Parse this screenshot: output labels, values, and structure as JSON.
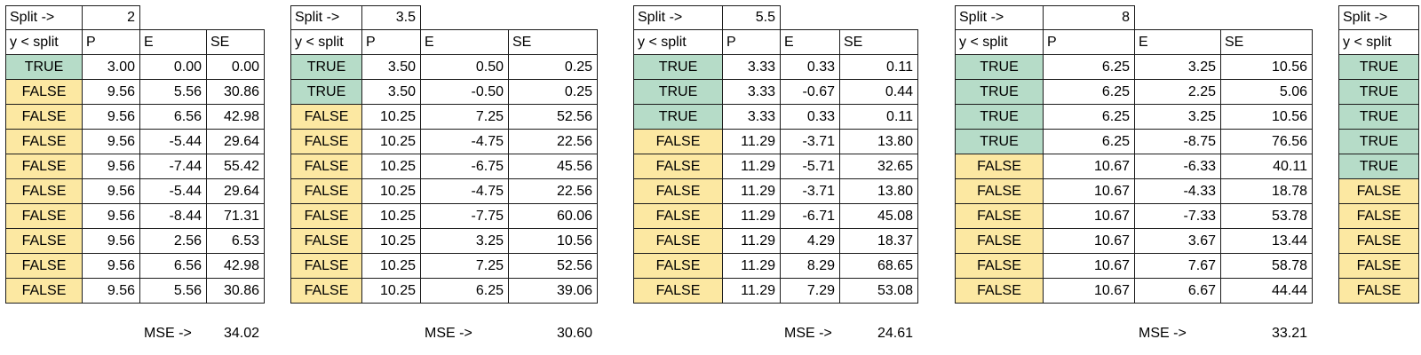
{
  "colors": {
    "true_fill": "#b6dcc8",
    "false_fill": "#fce8a2",
    "border": "#1c1c1c",
    "text": "#000000",
    "background": "#ffffff"
  },
  "chart_data": [
    {
      "type": "table",
      "split_label": "Split ->",
      "split_value": "2",
      "headers": [
        "y < split",
        "P",
        "E",
        "SE"
      ],
      "rows": [
        [
          "TRUE",
          "3.00",
          "0.00",
          "0.00"
        ],
        [
          "FALSE",
          "9.56",
          "5.56",
          "30.86"
        ],
        [
          "FALSE",
          "9.56",
          "6.56",
          "42.98"
        ],
        [
          "FALSE",
          "9.56",
          "-5.44",
          "29.64"
        ],
        [
          "FALSE",
          "9.56",
          "-7.44",
          "55.42"
        ],
        [
          "FALSE",
          "9.56",
          "-5.44",
          "29.64"
        ],
        [
          "FALSE",
          "9.56",
          "-8.44",
          "71.31"
        ],
        [
          "FALSE",
          "9.56",
          "2.56",
          "6.53"
        ],
        [
          "FALSE",
          "9.56",
          "6.56",
          "42.98"
        ],
        [
          "FALSE",
          "9.56",
          "5.56",
          "30.86"
        ]
      ],
      "mse_label": "MSE ->",
      "mse_value": "34.02"
    },
    {
      "type": "table",
      "split_label": "Split ->",
      "split_value": "3.5",
      "headers": [
        "y < split",
        "P",
        "E",
        "SE"
      ],
      "rows": [
        [
          "TRUE",
          "3.50",
          "0.50",
          "0.25"
        ],
        [
          "TRUE",
          "3.50",
          "-0.50",
          "0.25"
        ],
        [
          "FALSE",
          "10.25",
          "7.25",
          "52.56"
        ],
        [
          "FALSE",
          "10.25",
          "-4.75",
          "22.56"
        ],
        [
          "FALSE",
          "10.25",
          "-6.75",
          "45.56"
        ],
        [
          "FALSE",
          "10.25",
          "-4.75",
          "22.56"
        ],
        [
          "FALSE",
          "10.25",
          "-7.75",
          "60.06"
        ],
        [
          "FALSE",
          "10.25",
          "3.25",
          "10.56"
        ],
        [
          "FALSE",
          "10.25",
          "7.25",
          "52.56"
        ],
        [
          "FALSE",
          "10.25",
          "6.25",
          "39.06"
        ]
      ],
      "mse_label": "MSE ->",
      "mse_value": "30.60"
    },
    {
      "type": "table",
      "split_label": "Split ->",
      "split_value": "5.5",
      "headers": [
        "y < split",
        "P",
        "E",
        "SE"
      ],
      "rows": [
        [
          "TRUE",
          "3.33",
          "0.33",
          "0.11"
        ],
        [
          "TRUE",
          "3.33",
          "-0.67",
          "0.44"
        ],
        [
          "TRUE",
          "3.33",
          "0.33",
          "0.11"
        ],
        [
          "FALSE",
          "11.29",
          "-3.71",
          "13.80"
        ],
        [
          "FALSE",
          "11.29",
          "-5.71",
          "32.65"
        ],
        [
          "FALSE",
          "11.29",
          "-3.71",
          "13.80"
        ],
        [
          "FALSE",
          "11.29",
          "-6.71",
          "45.08"
        ],
        [
          "FALSE",
          "11.29",
          "4.29",
          "18.37"
        ],
        [
          "FALSE",
          "11.29",
          "8.29",
          "68.65"
        ],
        [
          "FALSE",
          "11.29",
          "7.29",
          "53.08"
        ]
      ],
      "mse_label": "MSE ->",
      "mse_value": "24.61"
    },
    {
      "type": "table",
      "split_label": "Split ->",
      "split_value": "8",
      "headers": [
        "y < split",
        "P",
        "E",
        "SE"
      ],
      "rows": [
        [
          "TRUE",
          "6.25",
          "3.25",
          "10.56"
        ],
        [
          "TRUE",
          "6.25",
          "2.25",
          "5.06"
        ],
        [
          "TRUE",
          "6.25",
          "3.25",
          "10.56"
        ],
        [
          "TRUE",
          "6.25",
          "-8.75",
          "76.56"
        ],
        [
          "FALSE",
          "10.67",
          "-6.33",
          "40.11"
        ],
        [
          "FALSE",
          "10.67",
          "-4.33",
          "18.78"
        ],
        [
          "FALSE",
          "10.67",
          "-7.33",
          "53.78"
        ],
        [
          "FALSE",
          "10.67",
          "3.67",
          "13.44"
        ],
        [
          "FALSE",
          "10.67",
          "7.67",
          "58.78"
        ],
        [
          "FALSE",
          "10.67",
          "6.67",
          "44.44"
        ]
      ],
      "mse_label": "MSE ->",
      "mse_value": "33.21"
    },
    {
      "type": "table",
      "truncated": true,
      "split_label": "Split ->",
      "headers": [
        "y < split"
      ],
      "rows": [
        [
          "TRUE"
        ],
        [
          "TRUE"
        ],
        [
          "TRUE"
        ],
        [
          "TRUE"
        ],
        [
          "TRUE"
        ],
        [
          "FALSE"
        ],
        [
          "FALSE"
        ],
        [
          "FALSE"
        ],
        [
          "FALSE"
        ],
        [
          "FALSE"
        ]
      ]
    }
  ]
}
